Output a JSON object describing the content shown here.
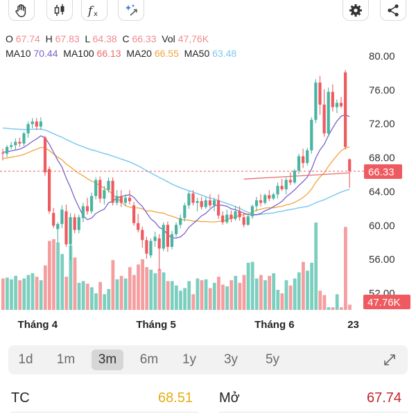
{
  "toolbar": {
    "left_icons": [
      "hand-icon",
      "candlestick-icon",
      "function-icon",
      "magic-icon"
    ],
    "right_icons": [
      "gear-icon",
      "share-icon"
    ]
  },
  "ohlc": {
    "o_label": "O",
    "o": "67.74",
    "h_label": "H",
    "h": "67.83",
    "l_label": "L",
    "l": "64.38",
    "c_label": "C",
    "c": "66.33",
    "vol_label": "Vol",
    "vol": "47,76K"
  },
  "ma": {
    "ma10_label": "MA10",
    "ma10": "70.44",
    "ma10_color": "#7b61c9",
    "ma100_label": "MA100",
    "ma100": "66.13",
    "ma100_color": "#ec6b6b",
    "ma20_label": "MA20",
    "ma20": "66.55",
    "ma20_color": "#f0a43a",
    "ma50_label": "MA50",
    "ma50": "63.48",
    "ma50_color": "#7ec8f0"
  },
  "colors": {
    "up": "#4ab3a1",
    "down": "#ee5a5f",
    "price_tag": "#ee5a5f",
    "vol_tag": "#ee5a5f"
  },
  "chart_data": {
    "type": "candlestick",
    "y_ticks": [
      "80.00",
      "76.00",
      "72.00",
      "68.00",
      "64.00",
      "60.00",
      "56.00",
      "52.00"
    ],
    "y_tick_values": [
      80,
      76,
      72,
      68,
      64,
      60,
      56,
      52
    ],
    "ylim": [
      50.4,
      83
    ],
    "x_labels": [
      "Tháng 4",
      "Tháng 5",
      "Tháng 6",
      "23"
    ],
    "x_label_index": [
      3,
      31,
      59,
      82
    ],
    "last_price": "66.33",
    "last_price_value": 66.33,
    "last_volume": "47.76K",
    "candles": [
      [
        68.5,
        69.0,
        67.6,
        68.4
      ],
      [
        68.4,
        69.4,
        68.0,
        69.2
      ],
      [
        69.2,
        69.8,
        68.9,
        69.4
      ],
      [
        69.4,
        70.2,
        68.9,
        69.8
      ],
      [
        69.8,
        70.3,
        69.2,
        69.6
      ],
      [
        69.6,
        71.0,
        69.3,
        70.8
      ],
      [
        70.8,
        72.2,
        70.3,
        71.9
      ],
      [
        71.9,
        72.6,
        71.4,
        72.2
      ],
      [
        72.2,
        72.6,
        71.2,
        71.6
      ],
      [
        71.6,
        72.7,
        71.2,
        72.2
      ],
      [
        70.3,
        70.5,
        65.8,
        66.2
      ],
      [
        66.6,
        66.9,
        61.3,
        61.6
      ],
      [
        61.4,
        62.0,
        59.6,
        59.9
      ],
      [
        59.5,
        60.3,
        57.8,
        60.1
      ],
      [
        60.1,
        62.3,
        59.6,
        61.8
      ],
      [
        61.6,
        62.4,
        57.4,
        57.7
      ],
      [
        57.7,
        61.4,
        55.8,
        60.9
      ],
      [
        60.9,
        61.3,
        59.0,
        59.4
      ],
      [
        59.4,
        61.2,
        59.0,
        60.9
      ],
      [
        60.8,
        62.6,
        60.3,
        62.2
      ],
      [
        62.2,
        63.2,
        61.2,
        61.6
      ],
      [
        61.6,
        63.8,
        61.3,
        63.4
      ],
      [
        63.4,
        65.6,
        63.0,
        65.3
      ],
      [
        65.3,
        65.7,
        62.6,
        63.1
      ],
      [
        63.1,
        64.6,
        62.4,
        64.1
      ],
      [
        64.1,
        65.6,
        63.8,
        65.2
      ],
      [
        65.2,
        65.6,
        62.3,
        62.6
      ],
      [
        62.6,
        64.1,
        62.3,
        63.4
      ],
      [
        63.4,
        64.1,
        62.1,
        62.6
      ],
      [
        62.6,
        63.6,
        62.2,
        63.2
      ],
      [
        63.2,
        64.1,
        62.4,
        62.8
      ],
      [
        62.3,
        62.7,
        59.9,
        60.2
      ],
      [
        60.2,
        61.3,
        59.1,
        59.4
      ],
      [
        59.4,
        59.8,
        57.3,
        58.2
      ],
      [
        58.2,
        58.6,
        56.0,
        56.6
      ],
      [
        56.4,
        58.4,
        56.1,
        58.1
      ],
      [
        58.1,
        59.2,
        57.4,
        58.6
      ],
      [
        58.4,
        58.9,
        54.6,
        57.2
      ],
      [
        57.2,
        60.3,
        56.9,
        60.0
      ],
      [
        60.0,
        60.4,
        56.8,
        57.4
      ],
      [
        57.4,
        59.3,
        57.1,
        58.9
      ],
      [
        58.9,
        60.3,
        58.6,
        60.0
      ],
      [
        60.0,
        61.2,
        59.6,
        60.8
      ],
      [
        60.8,
        62.6,
        60.4,
        62.3
      ],
      [
        62.3,
        64.0,
        61.9,
        63.7
      ],
      [
        63.7,
        64.1,
        62.3,
        62.6
      ],
      [
        62.6,
        63.2,
        61.6,
        62.8
      ],
      [
        62.8,
        63.3,
        61.8,
        62.1
      ],
      [
        62.1,
        63.3,
        61.9,
        62.9
      ],
      [
        62.9,
        63.6,
        62.0,
        62.3
      ],
      [
        62.3,
        63.2,
        61.6,
        62.9
      ],
      [
        62.9,
        63.6,
        60.7,
        61.1
      ],
      [
        61.1,
        61.6,
        60.0,
        60.3
      ],
      [
        60.3,
        61.8,
        60.1,
        61.2
      ],
      [
        61.2,
        61.7,
        60.3,
        60.7
      ],
      [
        60.7,
        62.2,
        60.5,
        61.6
      ],
      [
        61.6,
        62.2,
        60.5,
        60.9
      ],
      [
        60.9,
        61.4,
        59.7,
        60.0
      ],
      [
        60.0,
        61.2,
        59.9,
        61.0
      ],
      [
        61.0,
        62.4,
        60.7,
        62.2
      ],
      [
        62.2,
        63.3,
        61.6,
        62.9
      ],
      [
        62.9,
        63.6,
        62.2,
        62.6
      ],
      [
        62.6,
        63.7,
        62.4,
        63.5
      ],
      [
        63.5,
        64.1,
        62.8,
        63.1
      ],
      [
        63.1,
        63.8,
        62.9,
        63.6
      ],
      [
        63.6,
        65.0,
        63.1,
        64.6
      ],
      [
        64.6,
        65.4,
        64.0,
        64.2
      ],
      [
        64.2,
        65.6,
        63.6,
        65.3
      ],
      [
        65.3,
        66.2,
        64.7,
        65.0
      ],
      [
        65.0,
        66.6,
        64.8,
        66.4
      ],
      [
        66.4,
        68.4,
        66.0,
        68.1
      ],
      [
        68.1,
        69.0,
        66.7,
        67.3
      ],
      [
        67.3,
        69.1,
        67.0,
        68.8
      ],
      [
        68.8,
        72.7,
        68.4,
        72.4
      ],
      [
        72.4,
        77.2,
        72.0,
        76.8
      ],
      [
        76.8,
        77.6,
        73.0,
        74.2
      ],
      [
        74.2,
        76.0,
        70.4,
        70.8
      ],
      [
        70.8,
        76.2,
        70.4,
        75.7
      ],
      [
        75.7,
        76.6,
        73.4,
        73.9
      ],
      [
        73.9,
        74.8,
        73.2,
        74.4
      ],
      [
        74.4,
        75.1,
        73.8,
        74.0
      ],
      [
        78.0,
        78.3,
        68.9,
        69.2
      ],
      [
        67.74,
        67.83,
        64.38,
        66.33
      ]
    ],
    "volumes": [
      3.6,
      3.7,
      3.5,
      3.9,
      3.4,
      3.6,
      4.0,
      4.2,
      3.8,
      3.4,
      5.1,
      7.9,
      8.1,
      7.7,
      6.4,
      3.8,
      7.4,
      6.0,
      3.1,
      3.3,
      3.0,
      2.6,
      1.9,
      3.2,
      1.8,
      2.4,
      5.7,
      3.5,
      3.9,
      3.6,
      4.9,
      4.0,
      5.2,
      5.8,
      4.9,
      4.6,
      4.2,
      4.7,
      4.3,
      3.3,
      3.3,
      2.8,
      2.2,
      2.5,
      3.3,
      1.8,
      3.6,
      3.4,
      3.5,
      2.5,
      3.1,
      3.8,
      2.9,
      2.7,
      3.4,
      3.9,
      3.1,
      4.0,
      5.4,
      5.5,
      3.6,
      4.0,
      3.4,
      3.9,
      4.2,
      2.3,
      1.9,
      3.4,
      2.8,
      3.6,
      4.3,
      5.5,
      4.5,
      5.4,
      10.0,
      2.2,
      1.7,
      0.3,
      0.3,
      1.8,
      0.3,
      9.5,
      0.6
    ]
  },
  "timeframes": {
    "items": [
      "1d",
      "1m",
      "3m",
      "6m",
      "1y",
      "3y",
      "5y"
    ],
    "active": "3m"
  },
  "stats": {
    "tc_label": "TC",
    "tc_value": "68.51",
    "tc_color": "#e2ad12",
    "open_label": "Mở",
    "open_value": "67.74",
    "open_color": "#c0242d"
  }
}
